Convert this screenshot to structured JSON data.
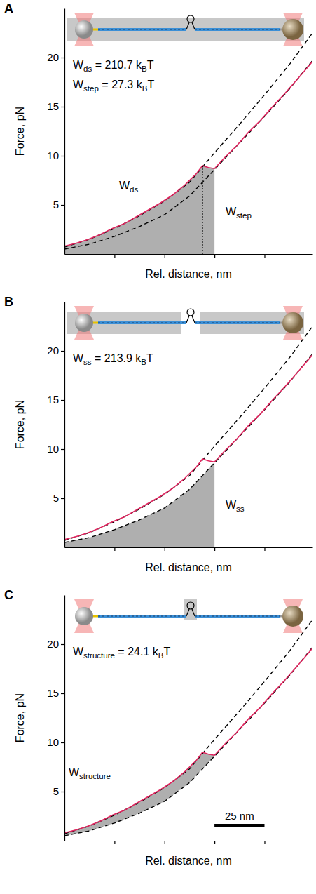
{
  "chart_data": [
    {
      "type": "line",
      "panel_label": "A",
      "xlabel": "Rel. distance, nm",
      "ylabel": "Force, pN",
      "xlim": [
        0,
        124
      ],
      "ylim": [
        0,
        25
      ],
      "xticks": [
        25,
        50,
        75,
        100
      ],
      "yticks": [
        5,
        10,
        15,
        20
      ],
      "tick_labels": "y",
      "series": [
        {
          "x": [
            0,
            12.5,
            25,
            37.5,
            50,
            62.5,
            75,
            87.5,
            100,
            112.5,
            124
          ],
          "values": [
            0.7,
            1.5,
            2.6,
            3.9,
            5.4,
            7.3,
            10.3,
            13.2,
            16.2,
            19.3,
            22.5
          ],
          "color": "#000000",
          "line_style": "dashed"
        },
        {
          "x": [
            0,
            12.5,
            25,
            37.5,
            50,
            62.5,
            75,
            87.5,
            100,
            112.5,
            124
          ],
          "values": [
            0.5,
            1.0,
            1.8,
            2.8,
            4.0,
            5.9,
            8.6,
            11.3,
            14.0,
            16.8,
            19.7
          ],
          "color": "#000000",
          "line_style": "dashed"
        },
        {
          "x": [
            0,
            6,
            12,
            18,
            24,
            30,
            36,
            42,
            48,
            54,
            60,
            66,
            69,
            72,
            75,
            80,
            86,
            92,
            98,
            104,
            110,
            116,
            122,
            124
          ],
          "values": [
            0.8,
            1.1,
            1.5,
            2.0,
            2.6,
            3.1,
            3.8,
            4.5,
            5.2,
            6.0,
            7.0,
            8.2,
            9.0,
            8.8,
            8.7,
            9.8,
            11.0,
            12.4,
            13.6,
            15.0,
            16.3,
            17.7,
            19.1,
            19.6
          ],
          "color": "#e0245e",
          "line_style": "solid"
        }
      ],
      "shade": {
        "from_series": 2,
        "to_series": null,
        "x": [
          0,
          75
        ]
      },
      "dotted_x": 69,
      "annotations": [
        {
          "segments": [
            {
              "text": "W"
            },
            {
              "text": "ds",
              "sub": true
            },
            {
              "text": " = 210.7 k"
            },
            {
              "text": "B",
              "sub": true
            },
            {
              "text": "T"
            }
          ]
        },
        {
          "segments": [
            {
              "text": "W"
            },
            {
              "text": "step",
              "sub": true
            },
            {
              "text": " = 27.3 k"
            },
            {
              "text": "B",
              "sub": true
            },
            {
              "text": "T"
            }
          ]
        }
      ],
      "area_labels": [
        {
          "segments": [
            {
              "text": "W"
            },
            {
              "text": "ds",
              "sub": true
            }
          ]
        },
        {
          "segments": [
            {
              "text": "W"
            },
            {
              "text": "step",
              "sub": true
            }
          ]
        }
      ]
    },
    {
      "type": "line",
      "panel_label": "B",
      "xlabel": "Rel. distance, nm",
      "ylabel": "Force, pN",
      "xlim": [
        0,
        124
      ],
      "ylim": [
        0,
        25
      ],
      "xticks": [
        25,
        50,
        75,
        100
      ],
      "yticks": [
        5,
        10,
        15,
        20
      ],
      "tick_labels": "y",
      "series": [
        {
          "x": [
            0,
            12.5,
            25,
            37.5,
            50,
            62.5,
            75,
            87.5,
            100,
            112.5,
            124
          ],
          "values": [
            0.7,
            1.5,
            2.6,
            3.9,
            5.4,
            7.3,
            10.3,
            13.2,
            16.2,
            19.3,
            22.5
          ],
          "color": "#000000",
          "line_style": "dashed"
        },
        {
          "x": [
            0,
            12.5,
            25,
            37.5,
            50,
            62.5,
            75,
            87.5,
            100,
            112.5,
            124
          ],
          "values": [
            0.5,
            1.0,
            1.8,
            2.8,
            4.0,
            5.9,
            8.6,
            11.3,
            14.0,
            16.8,
            19.7
          ],
          "color": "#000000",
          "line_style": "dashed"
        },
        {
          "x": [
            0,
            6,
            12,
            18,
            24,
            30,
            36,
            42,
            48,
            54,
            60,
            66,
            69,
            72,
            75,
            80,
            86,
            92,
            98,
            104,
            110,
            116,
            122,
            124
          ],
          "values": [
            0.8,
            1.1,
            1.5,
            2.0,
            2.6,
            3.1,
            3.8,
            4.5,
            5.2,
            6.0,
            7.0,
            8.2,
            9.0,
            8.8,
            8.7,
            9.8,
            11.0,
            12.4,
            13.6,
            15.0,
            16.3,
            17.7,
            19.1,
            19.6
          ],
          "color": "#e0245e",
          "line_style": "solid"
        }
      ],
      "shade": {
        "from_series": 1,
        "to_series": null,
        "x": [
          0,
          75
        ]
      },
      "annotations": [
        {
          "segments": [
            {
              "text": "W"
            },
            {
              "text": "ss",
              "sub": true
            },
            {
              "text": " = 213.9 k"
            },
            {
              "text": "B",
              "sub": true
            },
            {
              "text": "T"
            }
          ]
        }
      ],
      "area_labels": [
        {
          "segments": [
            {
              "text": "W"
            },
            {
              "text": "ss",
              "sub": true
            }
          ]
        }
      ]
    },
    {
      "type": "line",
      "panel_label": "C",
      "xlabel": "Rel. distance, nm",
      "ylabel": "Force, pN",
      "xlim": [
        0,
        124
      ],
      "ylim": [
        0,
        25
      ],
      "xticks": [
        25,
        50,
        75,
        100
      ],
      "yticks": [
        5,
        10,
        15,
        20
      ],
      "tick_labels": "y",
      "series": [
        {
          "x": [
            0,
            12.5,
            25,
            37.5,
            50,
            62.5,
            75,
            87.5,
            100,
            112.5,
            124
          ],
          "values": [
            0.7,
            1.5,
            2.6,
            3.9,
            5.4,
            7.3,
            10.3,
            13.2,
            16.2,
            19.3,
            22.5
          ],
          "color": "#000000",
          "line_style": "dashed"
        },
        {
          "x": [
            0,
            12.5,
            25,
            37.5,
            50,
            62.5,
            75,
            87.5,
            100,
            112.5,
            124
          ],
          "values": [
            0.5,
            1.0,
            1.8,
            2.8,
            4.0,
            5.9,
            8.6,
            11.3,
            14.0,
            16.8,
            19.7
          ],
          "color": "#000000",
          "line_style": "dashed"
        },
        {
          "x": [
            0,
            6,
            12,
            18,
            24,
            30,
            36,
            42,
            48,
            54,
            60,
            66,
            69,
            72,
            75,
            80,
            86,
            92,
            98,
            104,
            110,
            116,
            122,
            124
          ],
          "values": [
            0.8,
            1.1,
            1.5,
            2.0,
            2.6,
            3.1,
            3.8,
            4.5,
            5.2,
            6.0,
            7.0,
            8.2,
            9.0,
            8.8,
            8.7,
            9.8,
            11.0,
            12.4,
            13.6,
            15.0,
            16.3,
            17.7,
            19.1,
            19.6
          ],
          "color": "#e0245e",
          "line_style": "solid"
        }
      ],
      "shade": {
        "from_series": 2,
        "to_series": 1,
        "x": [
          0,
          75
        ]
      },
      "annotations": [
        {
          "segments": [
            {
              "text": "W"
            },
            {
              "text": "structure",
              "sub": true
            },
            {
              "text": " = 24.1 k"
            },
            {
              "text": "B",
              "sub": true
            },
            {
              "text": "T"
            }
          ]
        }
      ],
      "area_labels": [
        {
          "segments": [
            {
              "text": "W"
            },
            {
              "text": "structure",
              "sub": true
            }
          ]
        }
      ],
      "scale_bar": {
        "x": [
          75,
          100
        ],
        "label": "25 nm"
      }
    }
  ]
}
